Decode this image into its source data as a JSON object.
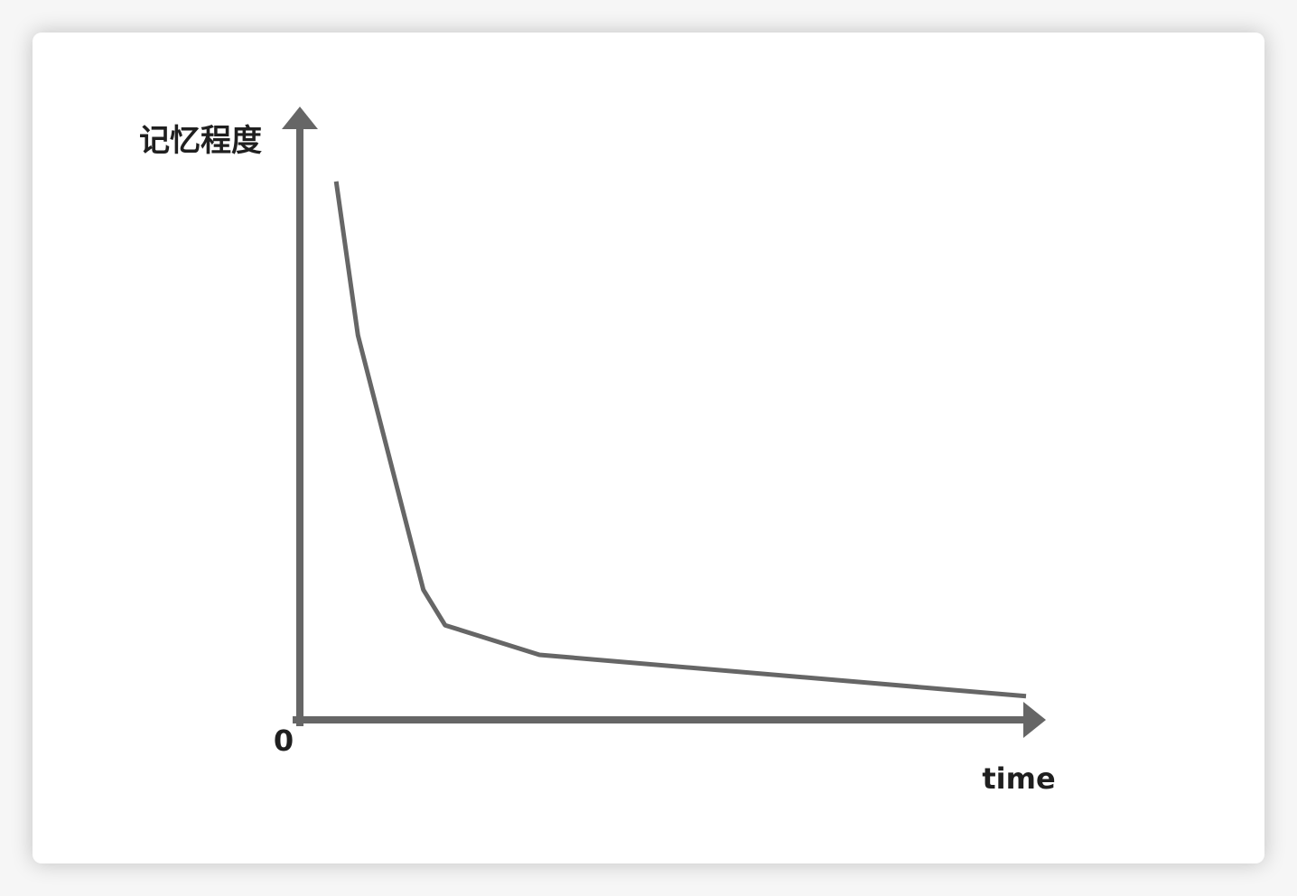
{
  "chart_data": {
    "type": "line",
    "title": "",
    "xlabel": "time",
    "ylabel": "记忆程度",
    "origin_label": "0",
    "xlim": [
      0,
      100
    ],
    "ylim": [
      0,
      100
    ],
    "grid": false,
    "legend": "none",
    "series": [
      {
        "x": [
          5,
          8,
          17,
          20,
          33,
          100
        ],
        "y": [
          91,
          65,
          22,
          16,
          11,
          4
        ]
      }
    ],
    "colors": {
      "axis": "#666666",
      "line": "#666666",
      "text": "#1f1f1f"
    }
  }
}
